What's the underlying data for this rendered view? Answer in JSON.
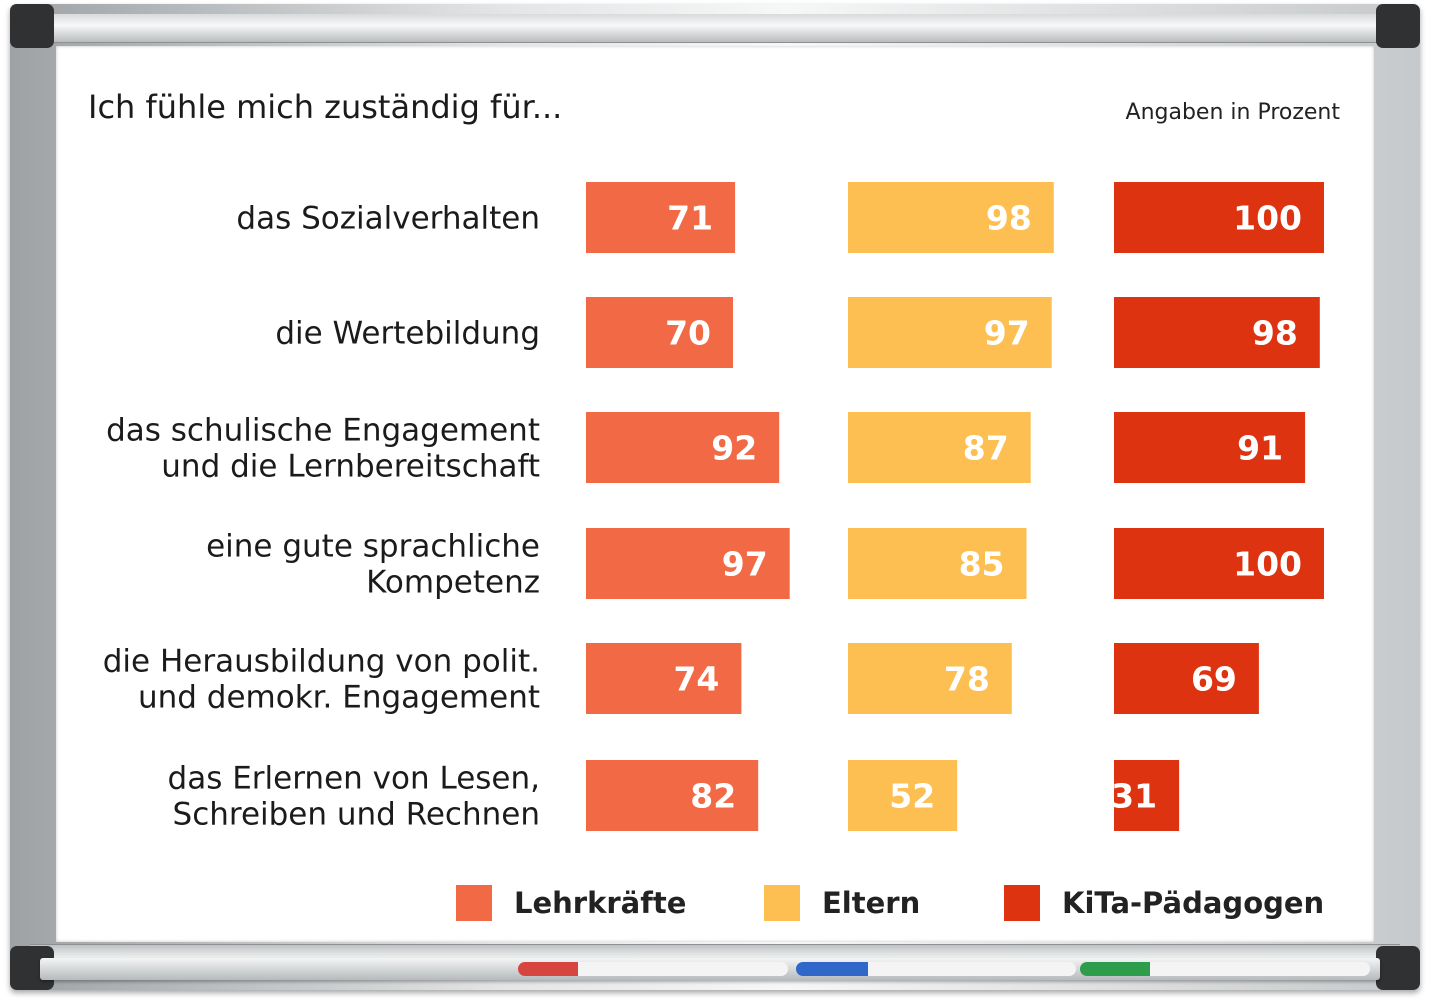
{
  "colors": {
    "Lehrkräfte": "#f26a45",
    "Eltern": "#fdbf52",
    "KiTa-Pädagogen": "#de3311",
    "value_text": "#ffffff"
  },
  "chart_data": {
    "type": "bar",
    "orientation": "horizontal",
    "title": "Ich fühle mich zuständig für...",
    "subtitle": "Angaben in Prozent",
    "categories": [
      [
        "das Sozialverhalten"
      ],
      [
        "die Wertebildung"
      ],
      [
        "das schulische Engagement",
        "und die Lernbereitschaft"
      ],
      [
        "eine gute sprachliche",
        "Kompetenz"
      ],
      [
        "die Herausbildung von polit.",
        "und demokr. Engagement"
      ],
      [
        "das Erlernen von Lesen,",
        "Schreiben und Rechnen"
      ]
    ],
    "series": [
      {
        "name": "Lehrkräfte",
        "values": [
          71,
          70,
          92,
          97,
          74,
          82
        ]
      },
      {
        "name": "Eltern",
        "values": [
          98,
          97,
          87,
          85,
          78,
          52
        ]
      },
      {
        "name": "KiTa-Pädagogen",
        "values": [
          100,
          98,
          91,
          100,
          69,
          31
        ]
      }
    ],
    "xlim": [
      0,
      100
    ],
    "legend_position": "bottom",
    "grid": false,
    "data_labels": true
  }
}
